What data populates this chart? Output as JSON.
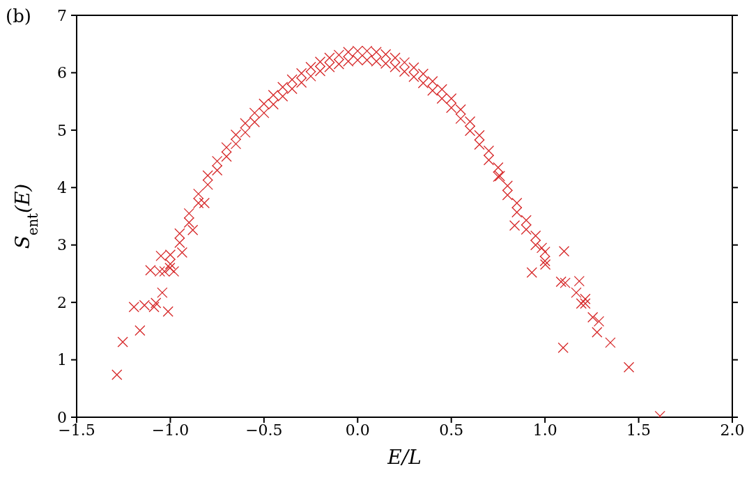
{
  "chart_data": {
    "type": "scatter",
    "xlabel": "E/L",
    "ylabel": "S$_{ent}$(E)",
    "annotations": [
      "(b)"
    ],
    "xlim": [
      -1.5,
      2.0
    ],
    "ylim": [
      0,
      7
    ],
    "xticks": [
      {
        "value": -1.5,
        "label": "−1.5"
      },
      {
        "value": -1.0,
        "label": "−1.0"
      },
      {
        "value": -0.5,
        "label": "−0.5"
      },
      {
        "value": 0,
        "label": "0.0"
      },
      {
        "value": 0.5,
        "label": "0.5"
      },
      {
        "value": 1.0,
        "label": "1.0"
      },
      {
        "value": 1.5,
        "label": "1.5"
      },
      {
        "value": 2.0,
        "label": "2.0"
      }
    ],
    "yticks": [
      0,
      1,
      2,
      3,
      4,
      5,
      6,
      7
    ],
    "marker": "cross",
    "series": [
      {
        "color": "#d62728",
        "x": [
          -1.0,
          -0.95,
          -0.9,
          -0.85,
          -0.8,
          -0.75,
          -0.7,
          -0.65,
          -0.6,
          -0.55,
          -0.5,
          -0.45,
          -0.4,
          -0.35,
          -0.3,
          -0.25,
          -0.2,
          -0.15,
          -0.1,
          -0.05,
          0,
          0.05,
          0.1,
          0.15,
          0.2,
          0.25,
          0.3,
          0.35,
          0.4,
          0.45,
          0.5,
          0.55,
          0.6,
          0.65,
          0.7,
          0.75,
          0.8,
          0.85,
          0.9,
          0.95,
          1.0,
          -1.0,
          -0.95,
          -0.9,
          -0.85,
          -0.8,
          -0.75,
          -0.7,
          -0.65,
          -0.6,
          -0.55,
          -0.5,
          -0.45,
          -0.4,
          -0.35,
          -0.3,
          -0.25,
          -0.2,
          -0.15,
          -0.1,
          -0.05,
          0,
          0.05,
          0.1,
          0.15,
          0.2,
          0.25,
          0.3,
          0.35,
          0.4,
          0.45,
          0.5,
          0.55,
          0.6,
          0.65,
          0.7,
          0.75,
          0.8,
          0.85,
          0.9,
          0.95,
          1.0,
          -1.285,
          -1.254,
          -1.162,
          -1.194,
          -1.138,
          -1.087,
          -1.077,
          -1.043,
          -1.012,
          -1.106,
          -1.056,
          -1.031,
          -0.981,
          -1.002,
          -1.05,
          -0.937,
          -0.88,
          -0.818,
          1.614,
          1.448,
          1.349,
          1.097,
          1.278,
          1.255,
          1.288,
          1.194,
          1.215,
          1.215,
          1.167,
          1.086,
          1.108,
          1.183,
          0.93,
          1.002,
          1.102,
          0.983,
          0.838,
          0.759
        ],
        "values": [
          2.83,
          3.2,
          3.55,
          3.89,
          4.21,
          4.46,
          4.7,
          4.92,
          5.12,
          5.3,
          5.46,
          5.61,
          5.75,
          5.88,
          5.99,
          6.1,
          6.19,
          6.26,
          6.31,
          6.36,
          6.38,
          6.38,
          6.36,
          6.32,
          6.26,
          6.18,
          6.09,
          5.98,
          5.85,
          5.71,
          5.55,
          5.36,
          5.15,
          4.91,
          4.64,
          4.35,
          4.03,
          3.73,
          3.43,
          3.16,
          2.88,
          2.67,
          3.04,
          3.39,
          3.73,
          4.05,
          4.3,
          4.54,
          4.76,
          4.96,
          5.14,
          5.3,
          5.45,
          5.59,
          5.72,
          5.83,
          5.94,
          6.03,
          6.1,
          6.15,
          6.2,
          6.22,
          6.22,
          6.2,
          6.16,
          6.1,
          6.02,
          5.93,
          5.82,
          5.69,
          5.55,
          5.39,
          5.2,
          4.99,
          4.75,
          4.48,
          4.19,
          3.87,
          3.57,
          3.27,
          3.0,
          2.72,
          0.74,
          1.31,
          1.51,
          1.92,
          1.95,
          1.92,
          1.99,
          2.17,
          1.84,
          2.56,
          2.54,
          2.54,
          2.54,
          2.6,
          2.81,
          2.87,
          3.26,
          3.73,
          0.02,
          0.87,
          1.3,
          1.21,
          1.48,
          1.74,
          1.67,
          1.98,
          1.98,
          2.06,
          2.17,
          2.36,
          2.34,
          2.37,
          2.52,
          2.66,
          2.89,
          2.95,
          3.34,
          4.2
        ]
      }
    ]
  }
}
